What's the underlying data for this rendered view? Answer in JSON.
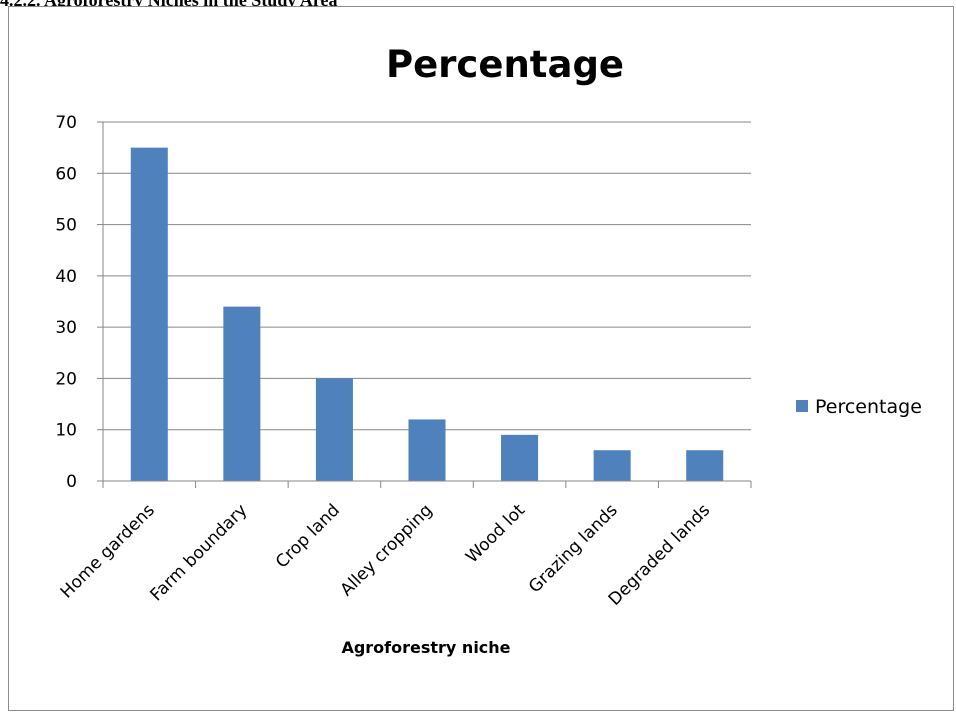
{
  "heading": "4.2.2. Agroforestry Niches in the Study Area",
  "chart_data": {
    "type": "bar",
    "title": "Percentage",
    "xlabel": "Agroforestry niche",
    "ylabel": "",
    "categories": [
      "Home gardens",
      "Farm boundary",
      "Crop land",
      "Alley cropping",
      "Wood lot",
      "Grazing lands",
      "Degraded lands"
    ],
    "series": [
      {
        "name": "Percentage",
        "values": [
          65,
          34,
          20,
          12,
          9,
          6,
          6
        ]
      }
    ],
    "ylim": [
      0,
      70
    ],
    "yticks": [
      0,
      10,
      20,
      30,
      40,
      50,
      60,
      70
    ],
    "grid": true,
    "legend_position": "right",
    "colors": {
      "bar": "#4f81bd",
      "grid": "#868686",
      "axis": "#868686"
    }
  }
}
